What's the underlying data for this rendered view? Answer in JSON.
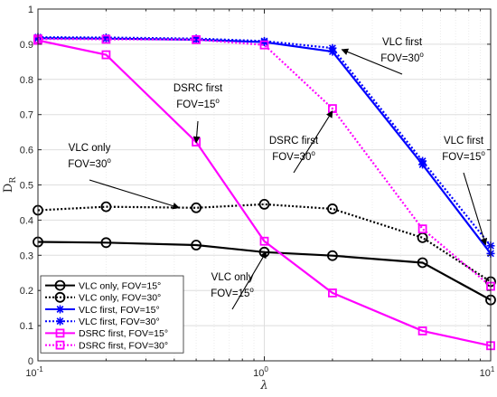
{
  "chart_data": {
    "type": "line",
    "xlabel": "λ",
    "ylabel": "D",
    "ylabel_sub": "R",
    "xscale": "log",
    "xlim": [
      0.1,
      10
    ],
    "ylim": [
      0,
      1
    ],
    "grid": true,
    "legend_position": "bottom-left",
    "xtick_labels": [
      {
        "value": 0.1,
        "base": "10",
        "exp": "-1"
      },
      {
        "value": 1,
        "base": "10",
        "exp": "0"
      },
      {
        "value": 10,
        "base": "10",
        "exp": "1"
      }
    ],
    "ytick_labels": [
      "0",
      "0.1",
      "0.2",
      "0.3",
      "0.4",
      "0.5",
      "0.6",
      "0.7",
      "0.8",
      "0.9",
      "1"
    ],
    "x": [
      0.1,
      0.2,
      0.5,
      1,
      2,
      5,
      10
    ],
    "series": [
      {
        "name": "VLC only, FOV=15°",
        "color": "#000000",
        "dash": "solid",
        "marker": "circle",
        "values": [
          0.338,
          0.336,
          0.329,
          0.309,
          0.299,
          0.279,
          0.173
        ]
      },
      {
        "name": "VLC only, FOV=30°",
        "color": "#000000",
        "dash": "dotted",
        "marker": "circle",
        "values": [
          0.428,
          0.438,
          0.435,
          0.445,
          0.432,
          0.35,
          0.225
        ]
      },
      {
        "name": "VLC first, FOV=15°",
        "color": "#0000ff",
        "dash": "solid",
        "marker": "star",
        "values": [
          0.917,
          0.916,
          0.913,
          0.906,
          0.879,
          0.558,
          0.305
        ]
      },
      {
        "name": "VLC first, FOV=30°",
        "color": "#0000ff",
        "dash": "dotted",
        "marker": "star",
        "values": [
          0.92,
          0.919,
          0.916,
          0.909,
          0.889,
          0.568,
          0.327
        ]
      },
      {
        "name": "DSRC first, FOV=15°",
        "color": "#ff00ff",
        "dash": "solid",
        "marker": "square",
        "values": [
          0.911,
          0.87,
          0.622,
          0.34,
          0.193,
          0.085,
          0.043
        ]
      },
      {
        "name": "DSRC first, FOV=30°",
        "color": "#ff00ff",
        "dash": "dotted",
        "marker": "square",
        "values": [
          0.915,
          0.914,
          0.913,
          0.898,
          0.717,
          0.375,
          0.212
        ]
      }
    ],
    "annotations": [
      {
        "lines": [
          "VLC first",
          "FOV=30"
        ],
        "sup": "o",
        "target": {
          "x": 2.2,
          "y": 0.885
        }
      },
      {
        "lines": [
          "DSRC first",
          "FOV=15"
        ],
        "sup": "o",
        "target": {
          "x": 0.5,
          "y": 0.62
        }
      },
      {
        "lines": [
          "DSRC first",
          "FOV=30"
        ],
        "sup": "o",
        "target": {
          "x": 2,
          "y": 0.71
        }
      },
      {
        "lines": [
          "VLC first",
          "FOV=15"
        ],
        "sup": "o",
        "target": {
          "x": 9.5,
          "y": 0.33
        }
      },
      {
        "lines": [
          "VLC only",
          "FOV=30"
        ],
        "sup": "o",
        "target": {
          "x": 0.42,
          "y": 0.435
        }
      },
      {
        "lines": [
          "VLC only",
          "FOV=15"
        ],
        "sup": "o",
        "target": {
          "x": 1.02,
          "y": 0.31
        }
      }
    ]
  }
}
